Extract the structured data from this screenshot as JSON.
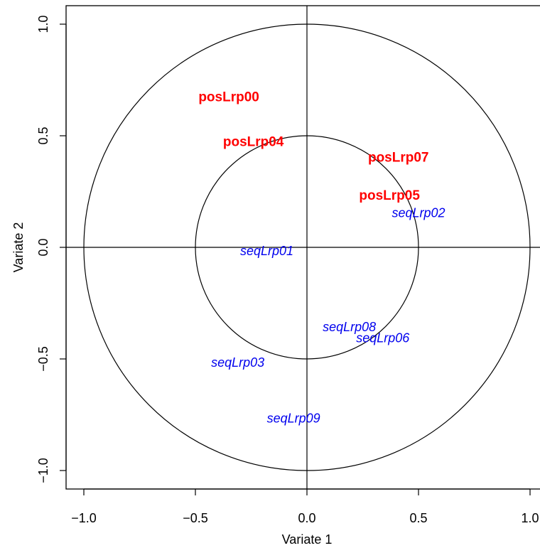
{
  "chart_data": {
    "type": "scatter",
    "title": "",
    "xlabel": "Variate 1",
    "ylabel": "Variate 2",
    "xlim": [
      -1.1,
      1.05
    ],
    "ylim": [
      -1.08,
      1.08
    ],
    "x_ticks": [
      -1.0,
      -0.5,
      0.0,
      0.5,
      1.0
    ],
    "x_tick_labels": [
      "−1.0",
      "−0.5",
      "0.0",
      "0.5",
      "1.0"
    ],
    "y_ticks": [
      -1.0,
      -0.5,
      0.0,
      0.5,
      1.0
    ],
    "y_tick_labels": [
      "−1.0",
      "−0.5",
      "0.0",
      "0.5",
      "1.0"
    ],
    "circles": [
      1.0,
      0.5
    ],
    "reference_lines": {
      "x": 0,
      "y": 0
    },
    "grid": false,
    "colors": {
      "pos": "#ff0000",
      "seq": "#0000ee",
      "axes": "#000000"
    },
    "series": [
      {
        "name": "",
        "color": "#ff0000",
        "style": "bold",
        "points": [
          {
            "label": "posLrp00",
            "x": -0.35,
            "y": 0.67
          },
          {
            "label": "posLrp04",
            "x": -0.24,
            "y": 0.47
          },
          {
            "label": "posLrp07",
            "x": 0.41,
            "y": 0.4
          },
          {
            "label": "posLrp05",
            "x": 0.37,
            "y": 0.23
          }
        ]
      },
      {
        "name": "",
        "color": "#0000ee",
        "style": "italic",
        "points": [
          {
            "label": "seqLrp02",
            "x": 0.5,
            "y": 0.15
          },
          {
            "label": "seqLrp01",
            "x": -0.18,
            "y": -0.02
          },
          {
            "label": "seqLrp08",
            "x": 0.19,
            "y": -0.36
          },
          {
            "label": "seqLrp06",
            "x": 0.34,
            "y": -0.41
          },
          {
            "label": "seqLrp03",
            "x": -0.31,
            "y": -0.52
          },
          {
            "label": "seqLrp09",
            "x": -0.06,
            "y": -0.77
          }
        ]
      }
    ]
  }
}
